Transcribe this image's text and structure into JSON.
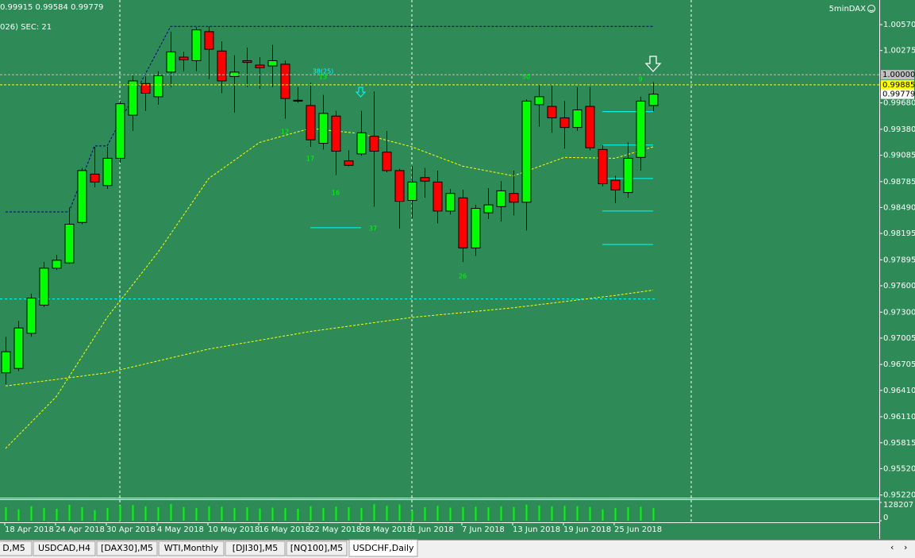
{
  "chart_data": {
    "type": "candlestick",
    "header": "0.99915 0.99584 0.99779",
    "subheader": "026)  SEC: 21",
    "corner_text": "5minDAX",
    "background": "#2e8b57",
    "up_color": "#00ff00",
    "down_color": "#ff0000",
    "categories": [
      "18 Apr 2018",
      null,
      null,
      null,
      "24 Apr 2018",
      null,
      null,
      null,
      "30 Apr 2018",
      null,
      null,
      null,
      "4 May 2018",
      null,
      null,
      null,
      "10 May 2018",
      null,
      null,
      null,
      "16 May 2018",
      null,
      null,
      null,
      "22 May 2018",
      null,
      null,
      null,
      "28 May 2018",
      null,
      null,
      null,
      "1 Jun 2018",
      null,
      null,
      null,
      "7 Jun 2018",
      null,
      null,
      null,
      "13 Jun 2018",
      null,
      null,
      null,
      "19 Jun 2018",
      null,
      null,
      null,
      "25 Jun 2018",
      null,
      null,
      null
    ],
    "open": [
      0.9661,
      0.9666,
      0.9706,
      0.9738,
      0.978,
      0.9786,
      0.9832,
      0.9887,
      0.9874,
      0.9905,
      0.9954,
      0.999,
      0.9975,
      1.0003,
      1.002,
      1.0016,
      1.0049,
      1.0027,
      0.9998,
      1.0016,
      1.0011,
      1.001,
      1.0012,
      0.9971,
      0.9965,
      0.9922,
      0.9953,
      0.9902,
      0.991,
      0.993,
      0.9912,
      0.9891,
      0.9857,
      0.9883,
      0.9878,
      0.9845,
      0.986,
      0.9803,
      0.9843,
      0.985,
      0.9865,
      0.9855,
      0.9966,
      0.9964,
      0.9951,
      0.994,
      0.9964,
      0.9915,
      0.988,
      0.9866,
      0.9906,
      0.9965
    ],
    "high": [
      0.9702,
      0.972,
      0.9751,
      0.9787,
      0.9795,
      0.9849,
      0.9894,
      0.9918,
      0.9918,
      0.997,
      0.9999,
      0.9998,
      1.0004,
      1.0049,
      1.0026,
      1.0054,
      1.0055,
      1.0038,
      1.0022,
      1.0031,
      1.002,
      1.0034,
      1.0016,
      0.9986,
      0.9991,
      0.9977,
      0.9959,
      0.9914,
      0.9959,
      0.9981,
      0.9936,
      0.9893,
      0.9896,
      0.9894,
      0.9891,
      0.987,
      0.9869,
      0.9852,
      0.9871,
      0.9879,
      0.9891,
      0.9972,
      0.9988,
      0.9988,
      0.997,
      0.9986,
      0.9986,
      0.992,
      0.9885,
      0.9923,
      0.9975,
      0.99915
    ],
    "low": [
      0.9648,
      0.9663,
      0.9702,
      0.9736,
      0.9778,
      0.9785,
      0.983,
      0.9872,
      0.987,
      0.99,
      0.9936,
      0.9959,
      0.9966,
      0.9986,
      1.0004,
      1.0004,
      0.9995,
      0.9979,
      0.9957,
      0.9986,
      0.9984,
      0.9986,
      0.995,
      0.9968,
      0.9918,
      0.9915,
      0.9886,
      0.9896,
      0.9908,
      0.985,
      0.9889,
      0.9825,
      0.9837,
      0.986,
      0.9831,
      0.9841,
      0.9787,
      0.9794,
      0.9836,
      0.9833,
      0.984,
      0.9823,
      0.9941,
      0.9934,
      0.9916,
      0.9936,
      0.9914,
      0.9873,
      0.9854,
      0.986,
      0.9891,
      0.99584
    ],
    "close": [
      0.9685,
      0.9712,
      0.9746,
      0.978,
      0.9789,
      0.983,
      0.9891,
      0.9878,
      0.9905,
      0.9967,
      0.9993,
      0.9979,
      0.9999,
      1.0026,
      1.0017,
      1.0051,
      1.0029,
      0.9993,
      1.0003,
      1.0014,
      1.0008,
      1.0016,
      0.9973,
      0.997,
      0.9926,
      0.9956,
      0.9913,
      0.9897,
      0.9934,
      0.9913,
      0.9891,
      0.9856,
      0.9878,
      0.9879,
      0.9845,
      0.9865,
      0.9803,
      0.9848,
      0.9852,
      0.9868,
      0.9855,
      0.997,
      0.9975,
      0.9951,
      0.994,
      0.996,
      0.9917,
      0.9876,
      0.9869,
      0.9905,
      0.997,
      0.99779
    ],
    "ylim": [
      0.9519,
      1.0085
    ],
    "yticks": [
      {
        "value": 1.0057,
        "label": "1.00570"
      },
      {
        "value": 1.00275,
        "label": "1.00275"
      },
      {
        "value": 0.9968,
        "label": "0.99680"
      },
      {
        "value": 0.9938,
        "label": "0.99380"
      },
      {
        "value": 0.99085,
        "label": "0.99085"
      },
      {
        "value": 0.98785,
        "label": "0.98785"
      },
      {
        "value": 0.9849,
        "label": "0.98490"
      },
      {
        "value": 0.98195,
        "label": "0.98195"
      },
      {
        "value": 0.97895,
        "label": "0.97895"
      },
      {
        "value": 0.976,
        "label": "0.97600"
      },
      {
        "value": 0.973,
        "label": "0.97300"
      },
      {
        "value": 0.97005,
        "label": "0.97005"
      },
      {
        "value": 0.96705,
        "label": "0.96705"
      },
      {
        "value": 0.9641,
        "label": "0.96410"
      },
      {
        "value": 0.9611,
        "label": "0.96110"
      },
      {
        "value": 0.95815,
        "label": "0.95815"
      },
      {
        "value": 0.9552,
        "label": "0.95520"
      },
      {
        "value": 0.9522,
        "label": "0.95220"
      }
    ],
    "price_labels": [
      {
        "value": 1.0,
        "label": "1.00000",
        "bg": "#c0c0c0",
        "line_color": "#c0c0c0"
      },
      {
        "value": 0.99885,
        "label": "0.99885",
        "bg": "#ffff00",
        "line_color": "#ffff00"
      },
      {
        "value": 0.99779,
        "label": "0.99779",
        "bg": "#ffffff"
      }
    ],
    "hlines": [
      {
        "value": 0.9745,
        "color": "#00ffff"
      }
    ],
    "overlays": [
      {
        "color": "#ffff00",
        "x": [
          0,
          4,
          8,
          12,
          16,
          20,
          24,
          28,
          32,
          36,
          40,
          44,
          48,
          51
        ],
        "values": [
          0.9575,
          0.9634,
          0.9724,
          0.9798,
          0.9882,
          0.9923,
          0.9939,
          0.9933,
          0.9918,
          0.9896,
          0.9885,
          0.9906,
          0.9905,
          0.9918
        ]
      },
      {
        "color": "#ffff00",
        "x": [
          0,
          8,
          16,
          24,
          32,
          40,
          48,
          51
        ],
        "values": [
          0.9646,
          0.9661,
          0.9688,
          0.9708,
          0.9724,
          0.9735,
          0.9749,
          0.9755
        ]
      },
      {
        "color": "#000080",
        "x": [
          0,
          5,
          7,
          8,
          13,
          51
        ],
        "values": [
          0.9844,
          0.9844,
          0.9919,
          0.9919,
          1.0055,
          1.0055
        ]
      }
    ],
    "levels": [
      {
        "from": 24,
        "to": 28,
        "value": 0.9826
      },
      {
        "from": 47,
        "to": 51,
        "value": 0.9958
      },
      {
        "from": 47,
        "to": 51,
        "value": 0.992
      },
      {
        "from": 47,
        "to": 51,
        "value": 0.9882
      },
      {
        "from": 47,
        "to": 51,
        "value": 0.9845
      },
      {
        "from": 47,
        "to": 51,
        "value": 0.9807
      }
    ],
    "annotations": [
      {
        "text": "38(25)",
        "color": "#00ffff"
      },
      {
        "text": "13",
        "color": "#00ff00"
      },
      {
        "text": "50",
        "color": "#00ff00"
      },
      {
        "text": "9",
        "color": "#00ff00"
      },
      {
        "text": "12",
        "color": "#00ff00"
      },
      {
        "text": "17",
        "color": "#00ff00"
      },
      {
        "text": "16",
        "color": "#00ff00"
      },
      {
        "text": "37",
        "color": "#00ff00"
      },
      {
        "text": "26",
        "color": "#00ff00"
      }
    ],
    "volume": {
      "values": [
        95000,
        80000,
        101000,
        90000,
        84000,
        112000,
        95000,
        74000,
        89000,
        106000,
        110000,
        100000,
        95000,
        117000,
        96000,
        90000,
        100000,
        98000,
        90000,
        94000,
        85000,
        92000,
        88000,
        84000,
        101000,
        90000,
        99000,
        95000,
        90000,
        116000,
        104000,
        114000,
        70000,
        95000,
        104000,
        92000,
        96000,
        98000,
        94000,
        100000,
        96000,
        113000,
        106000,
        100000,
        104000,
        102000,
        97000,
        80000,
        90000,
        95000,
        98000,
        90000
      ],
      "ylim": [
        0,
        128207
      ],
      "yticks": [
        128207,
        0
      ],
      "color": "#00ff00"
    }
  },
  "tabs": [
    "D,M5",
    "USDCAD,H4",
    "[DAX30],M5",
    "WTI,Monthly",
    "[DJI30],M5",
    "[NQ100],M5",
    "USDCHF,Daily"
  ],
  "active_tab": 6
}
